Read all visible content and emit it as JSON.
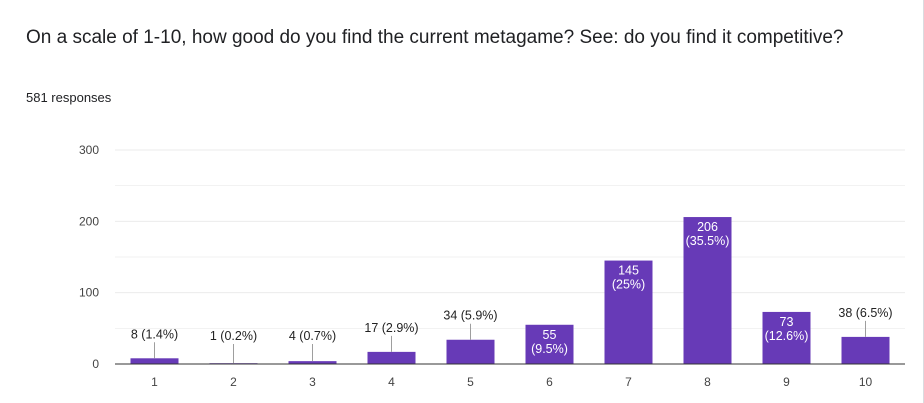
{
  "question": {
    "title": "On a scale of 1-10, how good do you find the current metagame? See: do you find it competitive?",
    "responses": "581 responses"
  },
  "colors": {
    "bar": "#673ab7",
    "grid": "#ebebeb",
    "axis": "#333333",
    "leader": "#9e9e9e"
  },
  "chart_data": {
    "type": "bar",
    "categories": [
      "1",
      "2",
      "3",
      "4",
      "5",
      "6",
      "7",
      "8",
      "9",
      "10"
    ],
    "values": [
      8,
      1,
      4,
      17,
      34,
      55,
      145,
      206,
      73,
      38
    ],
    "labels": [
      "8 (1.4%)",
      "1 (0.2%)",
      "4 (0.7%)",
      "17 (2.9%)",
      "34 (5.9%)",
      "55 (9.5%)",
      "145 (25%)",
      "206 (35.5%)",
      "73 (12.6%)",
      "38 (6.5%)"
    ],
    "ylim": [
      0,
      300
    ],
    "yticks": [
      0,
      100,
      200,
      300
    ],
    "grid": true,
    "legend": "none"
  }
}
